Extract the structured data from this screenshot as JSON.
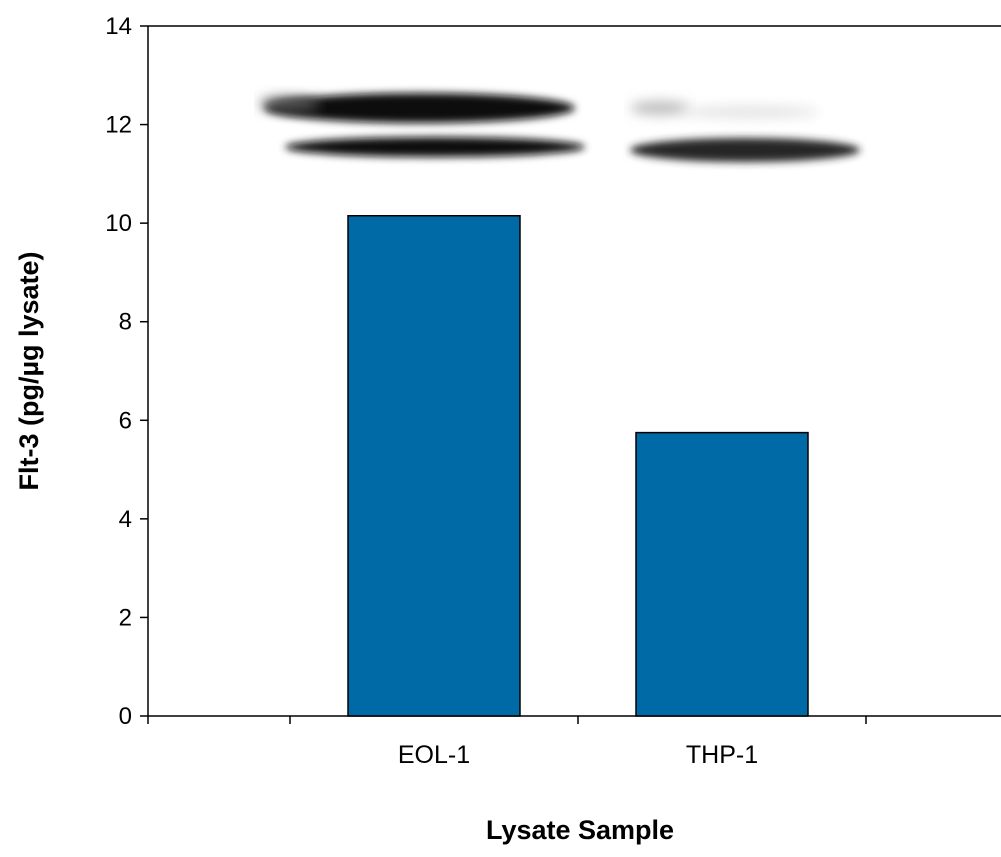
{
  "chart_data": {
    "type": "bar",
    "title": "",
    "xlabel": "Lysate Sample",
    "ylabel": "Flt-3 (pg/µg lysate)",
    "categories": [
      "EOL-1",
      "THP-1"
    ],
    "values": [
      10.15,
      5.75
    ],
    "ylim": [
      0,
      14
    ],
    "yticks": [
      0,
      2,
      4,
      6,
      8,
      10,
      12,
      14
    ],
    "grid": false,
    "legend": "none",
    "bar_color": "#006aa6",
    "bar_edge_color": "#000000",
    "inset": "western blot bands above bars",
    "ytick_labels": [
      "0",
      "2",
      "4",
      "6",
      "8",
      "10",
      "12",
      "14"
    ]
  }
}
